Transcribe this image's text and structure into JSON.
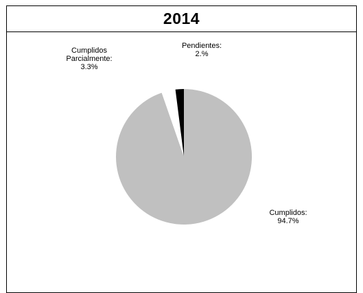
{
  "chart_data": {
    "type": "pie",
    "title": "2014",
    "slices": [
      {
        "label_lines": [
          "Cumplidos:",
          "94.7%"
        ],
        "value": 94.7,
        "color": "#c0c0c0"
      },
      {
        "label_lines": [
          "Cumplidos",
          "Parcialmente:",
          "3.3%"
        ],
        "value": 3.3,
        "color": "#ffffff"
      },
      {
        "label_lines": [
          "Pendientes:",
          "2.%"
        ],
        "value": 2.0,
        "color": "#000000"
      }
    ]
  }
}
